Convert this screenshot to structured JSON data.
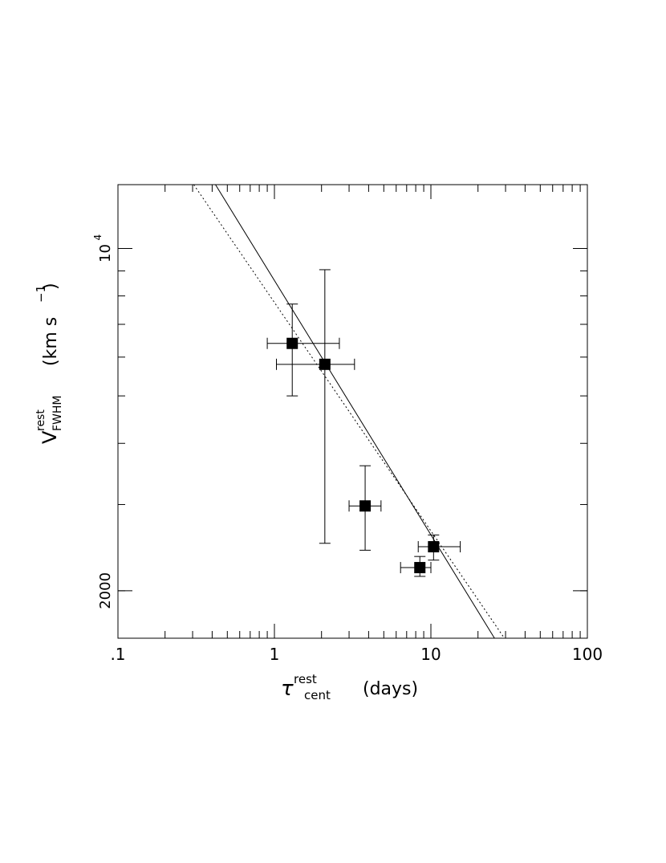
{
  "chart_data": {
    "type": "scatter",
    "xscale": "log",
    "yscale": "log",
    "xlim": [
      0.1,
      100
    ],
    "ylim": [
      1600,
      13500
    ],
    "x_ticks": [
      {
        "value": 0.1,
        "label": ".1"
      },
      {
        "value": 1,
        "label": "1"
      },
      {
        "value": 10,
        "label": "10"
      },
      {
        "value": 100,
        "label": "100"
      }
    ],
    "y_ticks": [
      {
        "value": 2000,
        "label": "2000"
      },
      {
        "value": 10000,
        "label": "10",
        "exponent": "4"
      }
    ],
    "xlabel": {
      "symbol": "τ",
      "superscript": "rest",
      "subscript": "cent",
      "units": "(days)"
    },
    "ylabel": {
      "symbol": "V",
      "superscript": "rest",
      "subscript": "FWHM",
      "units_main": "(km  s",
      "units_exp": "−1",
      "units_close": ")"
    },
    "grid": false,
    "points": [
      {
        "x": 1.3,
        "y": 6400,
        "xerr": [
          0.9,
          2.6
        ],
        "yerr": [
          5000,
          7700
        ]
      },
      {
        "x": 2.1,
        "y": 5800,
        "xerr": [
          1.03,
          3.25
        ],
        "yerr": [
          2500,
          9050
        ]
      },
      {
        "x": 3.8,
        "y": 2980,
        "xerr": [
          3.0,
          4.8
        ],
        "yerr": [
          2420,
          3600
        ]
      },
      {
        "x": 10.4,
        "y": 2460,
        "xerr": [
          8.3,
          15.4
        ],
        "yerr": [
          2310,
          2600
        ]
      },
      {
        "x": 8.5,
        "y": 2230,
        "xerr": [
          6.4,
          10.0
        ],
        "yerr": [
          2140,
          2350
        ]
      }
    ],
    "fit_lines": [
      {
        "style": "solid",
        "x": [
          0.42,
          25.5
        ],
        "y": [
          13500,
          1600
        ]
      },
      {
        "style": "dotted",
        "x": [
          0.305,
          29.5
        ],
        "y": [
          13500,
          1600
        ]
      }
    ]
  }
}
